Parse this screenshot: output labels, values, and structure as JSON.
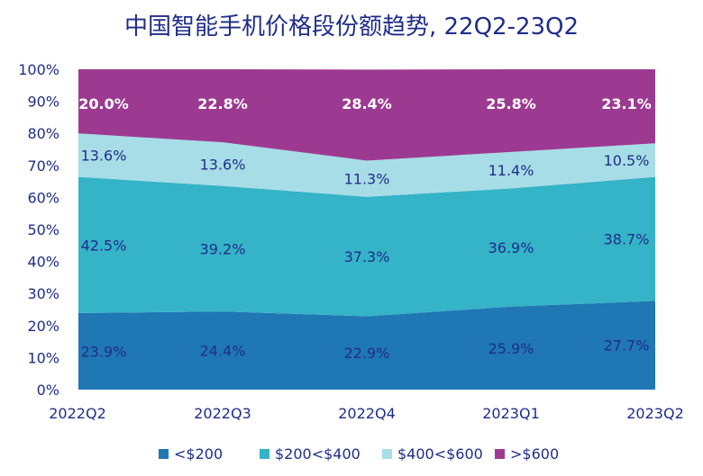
{
  "chart_data": {
    "type": "area",
    "stacked": true,
    "title": "中国智能手机价格段份额趋势, 22Q2-23Q2",
    "categories": [
      "2022Q2",
      "2022Q3",
      "2022Q4",
      "2023Q1",
      "2023Q2"
    ],
    "ylim": [
      0,
      100
    ],
    "yticks": [
      "0%",
      "10%",
      "20%",
      "30%",
      "40%",
      "50%",
      "60%",
      "70%",
      "80%",
      "90%",
      "100%"
    ],
    "series": [
      {
        "name": "<$200",
        "values": [
          23.9,
          24.4,
          22.9,
          25.9,
          27.7
        ],
        "labels": [
          "23.9%",
          "24.4%",
          "22.9%",
          "25.9%",
          "27.7%"
        ],
        "color": "#1f77b4"
      },
      {
        "name": "$200<$400",
        "values": [
          42.5,
          39.2,
          37.3,
          36.9,
          38.7
        ],
        "labels": [
          "42.5%",
          "39.2%",
          "37.3%",
          "36.9%",
          "38.7%"
        ],
        "color": "#35b3c7"
      },
      {
        "name": "$400<$600",
        "values": [
          13.6,
          13.6,
          11.3,
          11.4,
          10.5
        ],
        "labels": [
          "13.6%",
          "13.6%",
          "11.3%",
          "11.4%",
          "10.5%"
        ],
        "color": "#a7dde6"
      },
      {
        "name": ">$600",
        "values": [
          20.0,
          22.8,
          28.4,
          25.8,
          23.1
        ],
        "labels": [
          "20.0%",
          "22.8%",
          "28.4%",
          "25.8%",
          "23.1%"
        ],
        "color": "#9c3a92"
      }
    ],
    "legend_position": "bottom"
  }
}
